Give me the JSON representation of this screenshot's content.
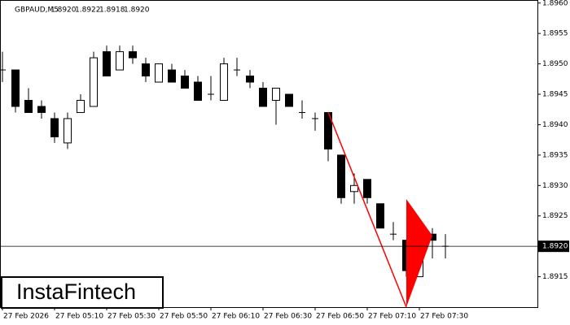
{
  "chart_data": {
    "type": "candlestick",
    "symbol": "GBPAUD,M5",
    "info_values": [
      "1.8920",
      "1.8922",
      "1.8918",
      "1.8920"
    ],
    "watermark": "InstaFintech",
    "up_color": "#ffffff",
    "down_color": "#000000",
    "pattern_color": "#ff0000",
    "ylim": [
      1.891,
      1.89605
    ],
    "yticks": [
      {
        "value": 1.896,
        "label": "1.8960"
      },
      1.8955,
      {
        "value": 1.895,
        "label": "1.8950"
      },
      1.8945,
      {
        "value": 1.894,
        "label": "1.8940"
      },
      1.8935,
      {
        "value": 1.893,
        "label": "1.8930"
      },
      1.8925,
      {
        "value": 1.892,
        "label": "1.8920"
      },
      1.8915
    ],
    "current_price": {
      "value": 1.892,
      "label": "1.8920"
    },
    "categories": [
      "27 Feb 2026",
      null,
      null,
      null,
      "27 Feb 05:10",
      null,
      null,
      null,
      "27 Feb 05:30",
      null,
      null,
      null,
      "27 Feb 05:50",
      null,
      null,
      null,
      "27 Feb 06:10",
      null,
      null,
      null,
      "27 Feb 06:30",
      null,
      null,
      null,
      "27 Feb 06:50",
      null,
      null,
      null,
      "27 Feb 07:10",
      null,
      null,
      null,
      "27 Feb 07:30",
      null,
      null
    ],
    "open": [
      1.8949,
      1.8949,
      1.8944,
      1.8943,
      1.8941,
      1.8937,
      1.8942,
      1.8943,
      1.8952,
      1.8949,
      1.8952,
      1.895,
      1.8947,
      1.8949,
      1.8948,
      1.8947,
      1.8945,
      1.8944,
      1.8949,
      1.8948,
      1.8946,
      1.8944,
      1.8945,
      1.8942,
      1.8941,
      1.8942,
      1.8935,
      1.8929,
      1.8931,
      1.8927,
      1.8922,
      1.8921,
      1.8915,
      1.8922,
      1.892
    ],
    "high": [
      1.8952,
      1.8949,
      1.8946,
      1.8944,
      1.8942,
      1.8942,
      1.8945,
      1.8952,
      1.8953,
      1.8953,
      1.8953,
      1.8951,
      1.895,
      1.895,
      1.8949,
      1.8948,
      1.8948,
      1.8951,
      1.8951,
      1.8949,
      1.8947,
      1.8946,
      1.8945,
      1.8944,
      1.8942,
      1.8942,
      1.8935,
      1.8932,
      1.8931,
      1.8927,
      1.8924,
      1.8921,
      1.8922,
      1.8923,
      1.8922
    ],
    "low": [
      1.8947,
      1.8942,
      1.8942,
      1.8941,
      1.8937,
      1.8936,
      1.8942,
      1.8943,
      1.8948,
      1.8949,
      1.895,
      1.8947,
      1.8947,
      1.8947,
      1.8946,
      1.8944,
      1.8944,
      1.8944,
      1.8948,
      1.8946,
      1.8943,
      1.894,
      1.8943,
      1.8941,
      1.8939,
      1.8934,
      1.8927,
      1.8927,
      1.8927,
      1.8923,
      1.8921,
      1.8915,
      1.8915,
      1.8918,
      1.8918
    ],
    "close": [
      1.8949,
      1.8943,
      1.8942,
      1.8942,
      1.8938,
      1.8941,
      1.8944,
      1.8951,
      1.8948,
      1.8952,
      1.8951,
      1.8948,
      1.895,
      1.8947,
      1.8946,
      1.8944,
      1.8945,
      1.895,
      1.8949,
      1.8947,
      1.8943,
      1.8946,
      1.8943,
      1.8942,
      1.8941,
      1.8936,
      1.8928,
      1.893,
      1.8928,
      1.8923,
      1.8922,
      1.8916,
      1.8921,
      1.8921,
      1.892
    ]
  }
}
